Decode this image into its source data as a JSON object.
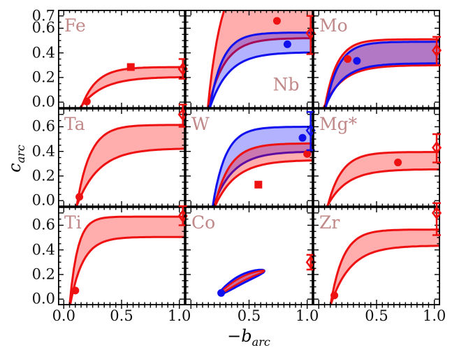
{
  "chart_data": {
    "type": "area",
    "description": "3x3 grid of band (uncertainty envelope) plots of c_arc vs -b_arc for nine elements, red and blue saturating bands with filled circle/square data points and open-diamond error-bar points at the right edge",
    "xlabel_base": "−b",
    "xlabel_sub": "arc",
    "ylabel_base": "c",
    "ylabel_sub": "arc",
    "axes": {
      "xlim": [
        -0.05,
        1.05
      ],
      "ylim": [
        -0.05,
        0.75
      ],
      "minor_step": 0.05,
      "x_major": [
        0.0,
        0.5,
        1.0
      ],
      "y_major": [
        0.0,
        0.2,
        0.4,
        0.6,
        0.7
      ],
      "x_tick_cols": [
        [
          {
            "v": 0.0,
            "t": "0.0"
          },
          {
            "v": 0.5,
            "t": "0.5"
          },
          {
            "v": 1.0,
            "t": "1.0"
          }
        ],
        [
          {
            "v": 0.5,
            "t": "0.5"
          },
          {
            "v": 1.0,
            "t": "1.0"
          }
        ],
        [
          {
            "v": 0.5,
            "t": "0.5"
          },
          {
            "v": 1.0,
            "t": "1.0"
          }
        ]
      ],
      "y_tick_rows": [
        [
          {
            "v": 0.7,
            "t": "0.7"
          },
          {
            "v": 0.6,
            "t": "0.6"
          },
          {
            "v": 0.4,
            "t": "0.4"
          },
          {
            "v": 0.2,
            "t": "0.2"
          },
          {
            "v": 0.0,
            "t": "0.0"
          }
        ],
        [
          {
            "v": 0.6,
            "t": "0.6"
          },
          {
            "v": 0.4,
            "t": "0.4"
          },
          {
            "v": 0.2,
            "t": "0.2"
          },
          {
            "v": 0.0,
            "t": "0.0"
          }
        ],
        [
          {
            "v": 0.6,
            "t": "0.6"
          },
          {
            "v": 0.4,
            "t": "0.4"
          },
          {
            "v": 0.2,
            "t": "0.2"
          },
          {
            "v": 0.0,
            "t": "0.0"
          }
        ]
      ]
    },
    "colors": {
      "red": "#ee1111",
      "blue": "#1111ee",
      "red_fill": "rgba(255,0,0,0.32)",
      "blue_fill": "rgba(0,0,255,0.30)",
      "panel_label": "#c08888",
      "axis": "#000000"
    },
    "panels": [
      {
        "element": "Fe",
        "label_pos": "tl",
        "bands": [
          {
            "color": "red",
            "lower": {
              "x0": 0.18,
              "tau": 0.19,
              "sat": 0.205
            },
            "upper": {
              "x0": 0.17,
              "tau": 0.13,
              "sat": 0.285
            }
          }
        ],
        "points": [
          {
            "marker": "circle",
            "color": "red",
            "x": 0.2,
            "y": 0.005
          },
          {
            "marker": "square",
            "color": "red",
            "x": 0.58,
            "y": 0.285
          }
        ],
        "diamond": {
          "color": "red",
          "x": 1.03,
          "y": 0.27,
          "lo": 0.19,
          "hi": 0.35
        }
      },
      {
        "element": "Nb",
        "label_pos": "br",
        "bands": [
          {
            "color": "red",
            "lower": {
              "x0": 0.16,
              "tau": 0.14,
              "sat": 0.52
            },
            "upper": {
              "x0": 0.15,
              "tau": 0.12,
              "sat": 1.1
            }
          },
          {
            "color": "blue",
            "lower": {
              "x0": 0.18,
              "tau": 0.16,
              "sat": 0.405
            },
            "upper": {
              "x0": 0.17,
              "tau": 0.11,
              "sat": 0.565
            }
          }
        ],
        "points": [
          {
            "marker": "circle",
            "color": "red",
            "x": 0.74,
            "y": 0.66
          },
          {
            "marker": "circle",
            "color": "blue",
            "x": 0.83,
            "y": 0.47
          }
        ],
        "diamond": {
          "color": "red",
          "x": 1.03,
          "y": 0.56,
          "lo": 0.39,
          "hi": 0.7
        }
      },
      {
        "element": "Mo",
        "label_pos": "tl",
        "bands": [
          {
            "color": "red",
            "lower": {
              "x0": 0.065,
              "tau": 0.16,
              "sat": 0.3
            },
            "upper": {
              "x0": 0.06,
              "tau": 0.105,
              "sat": 0.51
            }
          },
          {
            "color": "blue",
            "lower": {
              "x0": 0.075,
              "tau": 0.15,
              "sat": 0.315
            },
            "upper": {
              "x0": 0.07,
              "tau": 0.11,
              "sat": 0.49
            }
          }
        ],
        "points": [
          {
            "marker": "circle",
            "color": "red",
            "x": 0.25,
            "y": 0.35
          },
          {
            "marker": "circle",
            "color": "blue",
            "x": 0.33,
            "y": 0.335
          }
        ],
        "diamond": {
          "color": "red",
          "x": 1.02,
          "y": 0.42,
          "lo": 0.3,
          "hi": 0.53
        }
      },
      {
        "element": "Ta",
        "label_pos": "tl",
        "bands": [
          {
            "color": "red",
            "lower": {
              "x0": 0.13,
              "tau": 0.19,
              "sat": 0.425
            },
            "upper": {
              "x0": 0.12,
              "tau": 0.115,
              "sat": 0.615
            }
          }
        ],
        "points": [
          {
            "marker": "circle",
            "color": "red",
            "x": 0.135,
            "y": 0.03
          }
        ],
        "diamond": {
          "color": "red",
          "x": 1.03,
          "y": 0.7,
          "lo": 0.6,
          "hi": 0.78
        }
      },
      {
        "element": "W",
        "label_pos": "tl",
        "bands": [
          {
            "color": "blue",
            "lower": {
              "x0": 0.21,
              "tau": 0.17,
              "sat": 0.4
            },
            "upper": {
              "x0": 0.195,
              "tau": 0.11,
              "sat": 0.6
            }
          },
          {
            "color": "red",
            "lower": {
              "x0": 0.23,
              "tau": 0.18,
              "sat": 0.33
            },
            "upper": {
              "x0": 0.215,
              "tau": 0.13,
              "sat": 0.465
            }
          }
        ],
        "points": [
          {
            "marker": "square",
            "color": "red",
            "x": 0.58,
            "y": 0.13
          },
          {
            "marker": "circle",
            "color": "blue",
            "x": 0.96,
            "y": 0.51
          },
          {
            "marker": "circle",
            "color": "red",
            "x": 1.0,
            "y": 0.38
          }
        ],
        "diamond": {
          "color": "blue",
          "x": 1.03,
          "y": 0.57,
          "lo": 0.41,
          "hi": 0.72
        }
      },
      {
        "element": "Mg*",
        "label_pos": "tl",
        "bands": [
          {
            "color": "red",
            "lower": {
              "x0": 0.1,
              "tau": 0.17,
              "sat": 0.255
            },
            "upper": {
              "x0": 0.09,
              "tau": 0.12,
              "sat": 0.395
            }
          }
        ],
        "points": [
          {
            "marker": "circle",
            "color": "red",
            "x": 0.685,
            "y": 0.31
          }
        ],
        "diamond": {
          "color": "red",
          "x": 1.02,
          "y": 0.43,
          "lo": 0.31,
          "hi": 0.54
        }
      },
      {
        "element": "Ti",
        "label_pos": "tl",
        "bands": [
          {
            "color": "red",
            "lower": {
              "x0": 0.065,
              "tau": 0.11,
              "sat": 0.505
            },
            "upper": {
              "x0": 0.055,
              "tau": 0.07,
              "sat": 0.67
            }
          }
        ],
        "points": [
          {
            "marker": "circle",
            "color": "red",
            "x": 0.1,
            "y": 0.07
          }
        ],
        "diamond": {
          "color": "red",
          "x": 1.03,
          "y": 0.675,
          "lo": 0.6,
          "hi": 0.755
        }
      },
      {
        "element": "Co",
        "label_pos": "tl",
        "loop": {
          "x1": 0.25,
          "y1": 0.045,
          "x2": 0.63,
          "y2": 0.23,
          "arch": 0.025,
          "width": 0.03
        },
        "points": [
          {
            "marker": "circle",
            "color": "blue",
            "x": 0.26,
            "y": 0.05
          }
        ],
        "diamond": {
          "color": "red",
          "x": 1.03,
          "y": 0.3,
          "lo": 0.24,
          "hi": 0.36
        }
      },
      {
        "element": "Zr",
        "label_pos": "tl",
        "bands": [
          {
            "color": "red",
            "lower": {
              "x0": 0.12,
              "tau": 0.17,
              "sat": 0.435
            },
            "upper": {
              "x0": 0.11,
              "tau": 0.11,
              "sat": 0.565
            }
          }
        ],
        "points": [
          {
            "marker": "circle",
            "color": "red",
            "x": 0.135,
            "y": 0.03
          }
        ],
        "diamond": {
          "color": "red",
          "x": 1.02,
          "y": 0.7,
          "lo": 0.52,
          "hi": 0.78
        }
      }
    ]
  }
}
